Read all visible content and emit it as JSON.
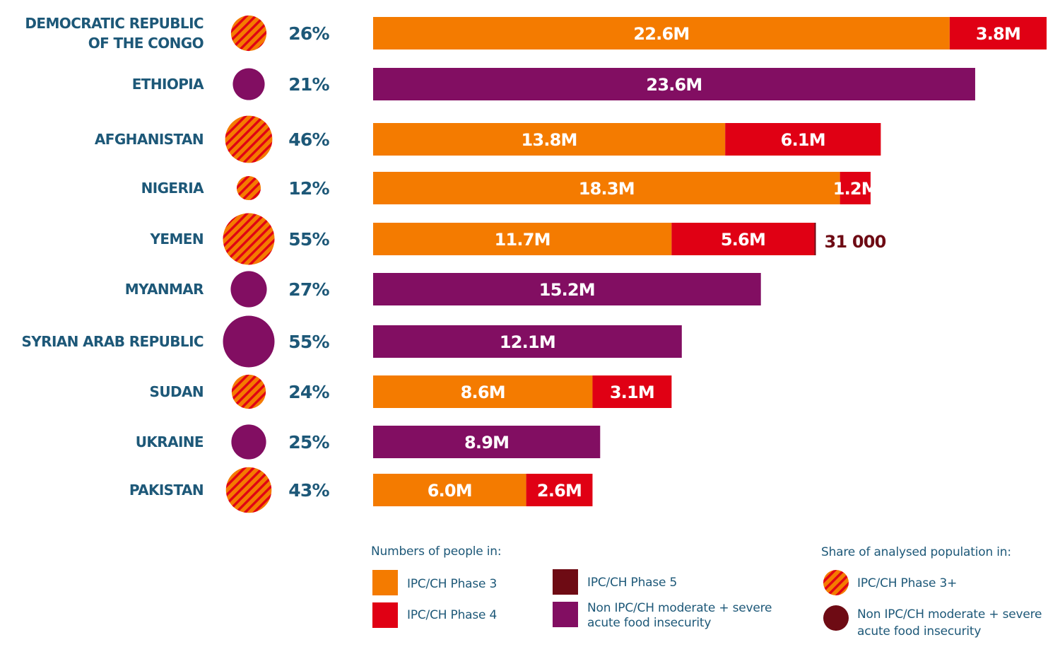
{
  "colors": {
    "phase3": "#f47b00",
    "phase4": "#e00014",
    "phase5": "#6e0b14",
    "non_ipc": "#820e62",
    "text": "#1d5878"
  },
  "chart_data": {
    "type": "bar",
    "orientation": "horizontal",
    "stacked": true,
    "grid": false,
    "categories": [
      "DEMOCRATIC REPUBLIC OF THE CONGO",
      "ETHIOPIA",
      "AFGHANISTAN",
      "NIGERIA",
      "YEMEN",
      "MYANMAR",
      "SYRIAN ARAB REPUBLIC",
      "SUDAN",
      "UKRAINE",
      "PAKISTAN"
    ],
    "category_lines": [
      [
        "DEMOCRATIC REPUBLIC",
        "OF THE CONGO"
      ],
      [
        "ETHIOPIA"
      ],
      [
        "AFGHANISTAN"
      ],
      [
        "NIGERIA"
      ],
      [
        "YEMEN"
      ],
      [
        "MYANMAR"
      ],
      [
        "SYRIAN ARAB REPUBLIC"
      ],
      [
        "SUDAN"
      ],
      [
        "UKRAINE"
      ],
      [
        "PAKISTAN"
      ]
    ],
    "units": "millions of people",
    "series": [
      {
        "name": "IPC/CH Phase 3",
        "key": "phase3",
        "values": [
          22.6,
          null,
          13.8,
          18.3,
          11.7,
          null,
          null,
          8.6,
          null,
          6.0
        ],
        "labels": [
          "22.6M",
          "",
          "13.8M",
          "18.3M",
          "11.7M",
          "",
          "",
          "8.6M",
          "",
          "6.0M"
        ]
      },
      {
        "name": "IPC/CH Phase 4",
        "key": "phase4",
        "values": [
          3.8,
          null,
          6.1,
          1.2,
          5.6,
          null,
          null,
          3.1,
          null,
          2.6
        ],
        "labels": [
          "3.8M",
          "",
          "6.1M",
          "1.2M",
          "5.6M",
          "",
          "",
          "3.1M",
          "",
          "2.6M"
        ]
      },
      {
        "name": "IPC/CH Phase 5",
        "key": "phase5",
        "values": [
          null,
          null,
          null,
          null,
          0.031,
          null,
          null,
          null,
          null,
          null
        ],
        "labels": [
          "",
          "",
          "",
          "",
          "31 000",
          "",
          "",
          "",
          "",
          ""
        ]
      },
      {
        "name": "Non IPC/CH moderate + severe acute food insecurity",
        "key": "non_ipc",
        "values": [
          null,
          23.6,
          null,
          null,
          null,
          15.2,
          12.1,
          null,
          8.9,
          null
        ],
        "labels": [
          "",
          "23.6M",
          "",
          "",
          "",
          "15.2M",
          "12.1M",
          "",
          "8.9M",
          ""
        ]
      }
    ],
    "share": {
      "values": [
        26,
        21,
        46,
        12,
        55,
        27,
        55,
        24,
        25,
        43
      ],
      "labels": [
        "26%",
        "21%",
        "46%",
        "12%",
        "55%",
        "27%",
        "55%",
        "24%",
        "25%",
        "43%"
      ],
      "types": [
        "phase3plus",
        "non_ipc",
        "phase3plus",
        "phase3plus",
        "phase3plus",
        "non_ipc",
        "non_ipc",
        "phase3plus",
        "non_ipc",
        "phase3plus"
      ]
    }
  },
  "legend": {
    "numbers_title": "Numbers of people in:",
    "share_title": "Share of analysed population in:",
    "items": {
      "phase3": "IPC/CH Phase 3",
      "phase4": "IPC/CH Phase 4",
      "phase5": "IPC/CH Phase 5",
      "non_ipc_line1": "Non IPC/CH moderate + severe",
      "non_ipc_line2": "acute food insecurity",
      "share_phase3plus": "IPC/CH Phase 3+",
      "share_non_ipc_line1": "Non IPC/CH moderate + severe",
      "share_non_ipc_line2": "acute food insecurity"
    }
  }
}
